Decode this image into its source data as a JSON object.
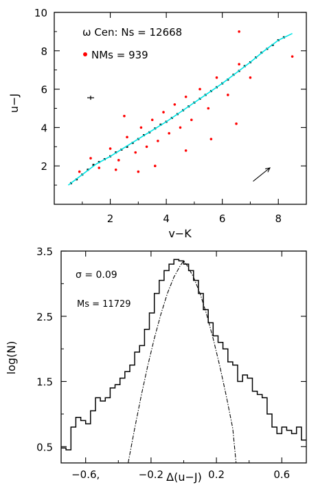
{
  "chart_data": [
    {
      "type": "scatter",
      "xlabel": "v−K",
      "ylabel": "u−J",
      "xlim": [
        0.0,
        9.0
      ],
      "ylim": [
        0.0,
        10.0
      ],
      "x_ticks": [
        2,
        4,
        6,
        8
      ],
      "y_ticks": [
        2,
        4,
        6,
        8,
        10
      ],
      "annotations": {
        "ns_label": "ω Cen: Ns = 12668",
        "nms_label": "NMs = 939"
      },
      "colors": {
        "members": "#000000",
        "non_members": "#ff0000",
        "fiducial": "#00e5e5"
      },
      "fiducial_line": {
        "x": [
          0.5,
          1.0,
          1.5,
          2.0,
          2.5,
          3.0,
          3.5,
          4.0,
          4.5,
          5.0,
          5.5,
          6.0,
          6.5,
          7.0,
          7.5,
          8.0,
          8.5
        ],
        "y": [
          1.0,
          1.55,
          2.1,
          2.5,
          2.95,
          3.4,
          3.85,
          4.3,
          4.8,
          5.3,
          5.8,
          6.3,
          6.85,
          7.4,
          8.0,
          8.55,
          8.9
        ]
      },
      "series": [
        {
          "name": "ω Cen: Ns = 12668",
          "points": [
            [
              0.6,
              1.1
            ],
            [
              0.8,
              1.3
            ],
            [
              1.0,
              1.55
            ],
            [
              1.2,
              1.8
            ],
            [
              1.4,
              2.05
            ],
            [
              1.6,
              2.2
            ],
            [
              1.8,
              2.35
            ],
            [
              2.0,
              2.5
            ],
            [
              2.2,
              2.7
            ],
            [
              2.4,
              2.85
            ],
            [
              2.6,
              3.0
            ],
            [
              2.8,
              3.2
            ],
            [
              3.0,
              3.4
            ],
            [
              3.2,
              3.6
            ],
            [
              3.4,
              3.75
            ],
            [
              3.6,
              3.95
            ],
            [
              3.8,
              4.15
            ],
            [
              4.0,
              4.3
            ],
            [
              4.2,
              4.5
            ],
            [
              4.4,
              4.7
            ],
            [
              4.6,
              4.9
            ],
            [
              4.8,
              5.1
            ],
            [
              5.0,
              5.3
            ],
            [
              5.2,
              5.5
            ],
            [
              5.4,
              5.7
            ],
            [
              5.6,
              5.9
            ],
            [
              5.8,
              6.1
            ],
            [
              6.0,
              6.3
            ],
            [
              6.2,
              6.5
            ],
            [
              6.4,
              6.75
            ],
            [
              6.6,
              6.95
            ],
            [
              6.8,
              7.2
            ],
            [
              7.0,
              7.4
            ],
            [
              7.2,
              7.65
            ],
            [
              7.4,
              7.9
            ],
            [
              7.6,
              8.1
            ],
            [
              7.8,
              8.3
            ],
            [
              8.0,
              8.55
            ],
            [
              8.2,
              8.7
            ]
          ]
        },
        {
          "name": "NMs = 939",
          "points": [
            [
              0.9,
              1.7
            ],
            [
              1.3,
              2.4
            ],
            [
              1.6,
              1.9
            ],
            [
              2.0,
              2.9
            ],
            [
              2.3,
              2.3
            ],
            [
              2.6,
              3.5
            ],
            [
              2.9,
              2.7
            ],
            [
              3.1,
              4.0
            ],
            [
              3.3,
              3.0
            ],
            [
              3.5,
              4.4
            ],
            [
              3.7,
              3.3
            ],
            [
              3.9,
              4.8
            ],
            [
              4.1,
              3.7
            ],
            [
              4.3,
              5.2
            ],
            [
              4.5,
              4.0
            ],
            [
              4.7,
              5.6
            ],
            [
              4.9,
              4.4
            ],
            [
              5.2,
              6.0
            ],
            [
              5.5,
              5.0
            ],
            [
              5.8,
              6.6
            ],
            [
              6.2,
              5.7
            ],
            [
              6.6,
              7.3
            ],
            [
              7.0,
              6.6
            ],
            [
              3.0,
              1.7
            ],
            [
              3.6,
              2.0
            ],
            [
              4.7,
              2.8
            ],
            [
              5.6,
              3.4
            ],
            [
              6.5,
              4.2
            ],
            [
              2.5,
              4.6
            ],
            [
              2.2,
              1.8
            ],
            [
              6.6,
              9.0
            ],
            [
              8.5,
              7.7
            ]
          ]
        }
      ],
      "error_bar": {
        "x": 1.3,
        "y": 5.55
      },
      "reddening_vector": {
        "x": [
          7.1,
          7.7
        ],
        "y": [
          1.2,
          1.9
        ]
      }
    },
    {
      "type": "line",
      "xlabel": "Δ(u−J)",
      "ylabel": "log(N)",
      "xlim": [
        -0.75,
        0.75
      ],
      "ylim": [
        0.25,
        3.5
      ],
      "x_ticks": [
        -0.6,
        -0.2,
        0.2,
        0.6
      ],
      "x_tick_labels": [
        "−0.6,",
        "−0.2",
        "0.2",
        "0.6"
      ],
      "y_ticks": [
        0.5,
        1.5,
        2.5,
        3.5
      ],
      "y_tick_labels": [
        "0.5",
        "1.5",
        "2.5",
        "3.5"
      ],
      "annotations": {
        "sigma_label": "σ = 0.09",
        "ms_label": "Ms = 11729"
      },
      "histogram": {
        "edges": [
          -0.75,
          -0.72,
          -0.69,
          -0.66,
          -0.63,
          -0.6,
          -0.57,
          -0.54,
          -0.51,
          -0.48,
          -0.45,
          -0.42,
          -0.39,
          -0.36,
          -0.33,
          -0.3,
          -0.27,
          -0.24,
          -0.21,
          -0.18,
          -0.15,
          -0.12,
          -0.09,
          -0.06,
          -0.03,
          0.0,
          0.03,
          0.06,
          0.09,
          0.12,
          0.15,
          0.18,
          0.21,
          0.24,
          0.27,
          0.3,
          0.33,
          0.36,
          0.39,
          0.42,
          0.45,
          0.48,
          0.51,
          0.54,
          0.57,
          0.6,
          0.63,
          0.66,
          0.69,
          0.72,
          0.75
        ],
        "values": [
          0.48,
          0.45,
          0.8,
          0.95,
          0.9,
          0.85,
          1.05,
          1.25,
          1.2,
          1.25,
          1.4,
          1.45,
          1.55,
          1.65,
          1.75,
          1.95,
          2.05,
          2.3,
          2.55,
          2.85,
          3.05,
          3.2,
          3.3,
          3.37,
          3.35,
          3.3,
          3.2,
          3.05,
          2.85,
          2.6,
          2.4,
          2.2,
          2.1,
          2.0,
          1.8,
          1.75,
          1.5,
          1.6,
          1.55,
          1.35,
          1.3,
          1.25,
          1.0,
          0.8,
          0.7,
          0.8,
          0.75,
          0.7,
          0.8,
          0.6
        ]
      },
      "gaussian_fit": {
        "x": [
          -0.34,
          -0.3,
          -0.26,
          -0.22,
          -0.18,
          -0.14,
          -0.1,
          -0.06,
          -0.02,
          0.0,
          0.02,
          0.06,
          0.1,
          0.14,
          0.18,
          0.22,
          0.26,
          0.3,
          0.32
        ],
        "y": [
          0.25,
          0.78,
          1.28,
          1.74,
          2.16,
          2.53,
          2.85,
          3.1,
          3.28,
          3.35,
          3.28,
          3.1,
          2.85,
          2.53,
          2.16,
          1.74,
          1.28,
          0.78,
          0.25
        ]
      }
    }
  ]
}
